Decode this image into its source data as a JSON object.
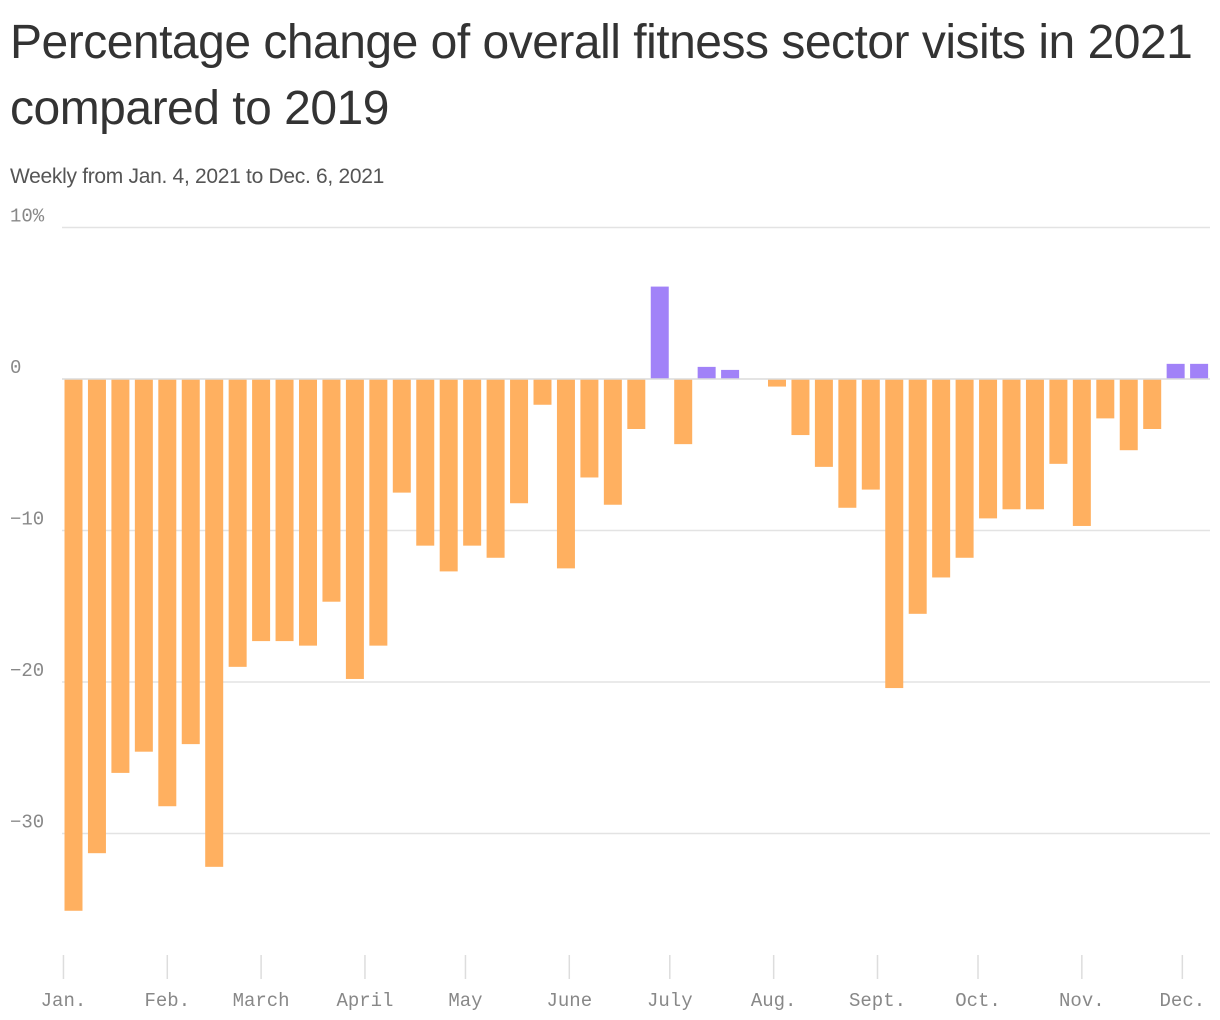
{
  "header": {
    "title": "Percentage change of overall fitness sector visits in 2021 compared to 2019",
    "subtitle": "Weekly from Jan. 4, 2021 to Dec. 6, 2021"
  },
  "colors": {
    "negative": "#ffb060",
    "positive": "#a182f8"
  },
  "chart_data": {
    "type": "bar",
    "title": "Percentage change of overall fitness sector visits in 2021 compared to 2019",
    "subtitle": "Weekly from Jan. 4, 2021 to Dec. 6, 2021",
    "xlabel": "",
    "ylabel": "",
    "ylim": [
      -38,
      10
    ],
    "yticks": [
      10,
      0,
      -10,
      -20,
      -30
    ],
    "ytick_labels": [
      "10%",
      "0",
      "−10",
      "−20",
      "−30"
    ],
    "grid": true,
    "x": [
      "2021-01-04",
      "2021-01-11",
      "2021-01-18",
      "2021-01-25",
      "2021-02-01",
      "2021-02-08",
      "2021-02-15",
      "2021-02-22",
      "2021-03-01",
      "2021-03-08",
      "2021-03-15",
      "2021-03-22",
      "2021-03-29",
      "2021-04-05",
      "2021-04-12",
      "2021-04-19",
      "2021-04-26",
      "2021-05-03",
      "2021-05-10",
      "2021-05-17",
      "2021-05-24",
      "2021-05-31",
      "2021-06-07",
      "2021-06-14",
      "2021-06-21",
      "2021-06-28",
      "2021-07-05",
      "2021-07-12",
      "2021-07-19",
      "2021-07-26",
      "2021-08-02",
      "2021-08-09",
      "2021-08-16",
      "2021-08-23",
      "2021-08-30",
      "2021-09-06",
      "2021-09-13",
      "2021-09-20",
      "2021-09-27",
      "2021-10-04",
      "2021-10-11",
      "2021-10-18",
      "2021-10-25",
      "2021-11-01",
      "2021-11-08",
      "2021-11-15",
      "2021-11-22",
      "2021-11-29",
      "2021-12-06"
    ],
    "values": [
      -35.1,
      -31.3,
      -26.0,
      -24.6,
      -28.2,
      -24.1,
      -32.2,
      -19.0,
      -17.3,
      -17.3,
      -17.6,
      -14.7,
      -19.8,
      -17.6,
      -7.5,
      -11.0,
      -12.7,
      -11.0,
      -11.8,
      -8.2,
      -1.7,
      -12.5,
      -6.5,
      -8.3,
      -3.3,
      6.1,
      -4.3,
      0.8,
      0.6,
      0.0,
      -0.5,
      -3.7,
      -5.8,
      -8.5,
      -7.3,
      -20.4,
      -15.5,
      -13.1,
      -11.8,
      -9.2,
      -8.6,
      -8.6,
      -5.6,
      -9.7,
      -2.6,
      -4.7,
      -3.3,
      1.0,
      1.0
    ],
    "month_ticks": [
      {
        "label": "Jan.",
        "date": "2021-01-01"
      },
      {
        "label": "Feb.",
        "date": "2021-02-01"
      },
      {
        "label": "March",
        "date": "2021-03-01"
      },
      {
        "label": "April",
        "date": "2021-04-01"
      },
      {
        "label": "May",
        "date": "2021-05-01"
      },
      {
        "label": "June",
        "date": "2021-06-01"
      },
      {
        "label": "July",
        "date": "2021-07-01"
      },
      {
        "label": "Aug.",
        "date": "2021-08-01"
      },
      {
        "label": "Sept.",
        "date": "2021-09-01"
      },
      {
        "label": "Oct.",
        "date": "2021-10-01"
      },
      {
        "label": "Nov.",
        "date": "2021-11-01"
      },
      {
        "label": "Dec.",
        "date": "2021-12-01"
      }
    ]
  }
}
